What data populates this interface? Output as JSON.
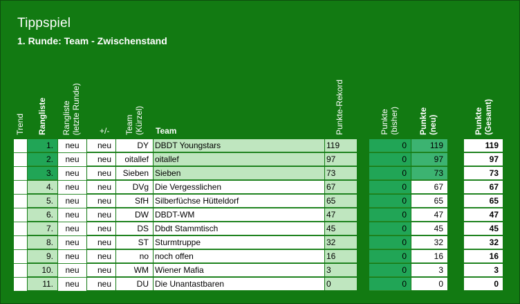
{
  "title": "Tippspiel",
  "subtitle": "1. Runde: Team - Zwischenstand",
  "headers": {
    "trend": "Trend",
    "rangliste": "Rangliste",
    "rangliste_letzte": "Rangliste\n(letzte Runde)",
    "plusminus": "+/-",
    "team_kuerzel": "Team\n(Kürzel)",
    "team": "Team",
    "punkte_rekord": "Punkte-Rekord",
    "punkte_bisher": "Punkte\n(bisher)",
    "punkte_neu": "Punkte\n(neu)",
    "punkte_gesamt": "Punkte\n(Gesamt)"
  },
  "rows": [
    {
      "rank": "1.",
      "last": "neu",
      "pm": "neu",
      "short": "DY",
      "team": "DBDT Youngstars",
      "rekord": "119",
      "bisher": "0",
      "neu": "119",
      "gesamt": "119"
    },
    {
      "rank": "2.",
      "last": "neu",
      "pm": "neu",
      "short": "oitallef",
      "team": "oitallef",
      "rekord": "97",
      "bisher": "0",
      "neu": "97",
      "gesamt": "97"
    },
    {
      "rank": "3.",
      "last": "neu",
      "pm": "neu",
      "short": "Sieben",
      "team": "Sieben",
      "rekord": "73",
      "bisher": "0",
      "neu": "73",
      "gesamt": "73"
    },
    {
      "rank": "4.",
      "last": "neu",
      "pm": "neu",
      "short": "DVg",
      "team": "Die Vergesslichen",
      "rekord": "67",
      "bisher": "0",
      "neu": "67",
      "gesamt": "67"
    },
    {
      "rank": "5.",
      "last": "neu",
      "pm": "neu",
      "short": "SfH",
      "team": "Silberfüchse Hütteldorf",
      "rekord": "65",
      "bisher": "0",
      "neu": "65",
      "gesamt": "65"
    },
    {
      "rank": "6.",
      "last": "neu",
      "pm": "neu",
      "short": "DW",
      "team": "DBDT-WM",
      "rekord": "47",
      "bisher": "0",
      "neu": "47",
      "gesamt": "47"
    },
    {
      "rank": "7.",
      "last": "neu",
      "pm": "neu",
      "short": "DS",
      "team": "Dbdt Stammtisch",
      "rekord": "45",
      "bisher": "0",
      "neu": "45",
      "gesamt": "45"
    },
    {
      "rank": "8.",
      "last": "neu",
      "pm": "neu",
      "short": "ST",
      "team": "Sturmtruppe",
      "rekord": "32",
      "bisher": "0",
      "neu": "32",
      "gesamt": "32"
    },
    {
      "rank": "9.",
      "last": "neu",
      "pm": "neu",
      "short": "no",
      "team": "noch offen",
      "rekord": "16",
      "bisher": "0",
      "neu": "16",
      "gesamt": "16"
    },
    {
      "rank": "10.",
      "last": "neu",
      "pm": "neu",
      "short": "WM",
      "team": "Wiener Mafia",
      "rekord": "3",
      "bisher": "0",
      "neu": "3",
      "gesamt": "3"
    },
    {
      "rank": "11.",
      "last": "neu",
      "pm": "neu",
      "short": "DU",
      "team": "Die Unantastbaren",
      "rekord": "0",
      "bisher": "0",
      "neu": "0",
      "gesamt": "0"
    }
  ],
  "colors": {
    "background": "#127a12",
    "top3_rank": "#21a556",
    "top3_row": "#bfe6bf",
    "bisher_column": "#21a556",
    "neu_top3": "#3cb371"
  }
}
